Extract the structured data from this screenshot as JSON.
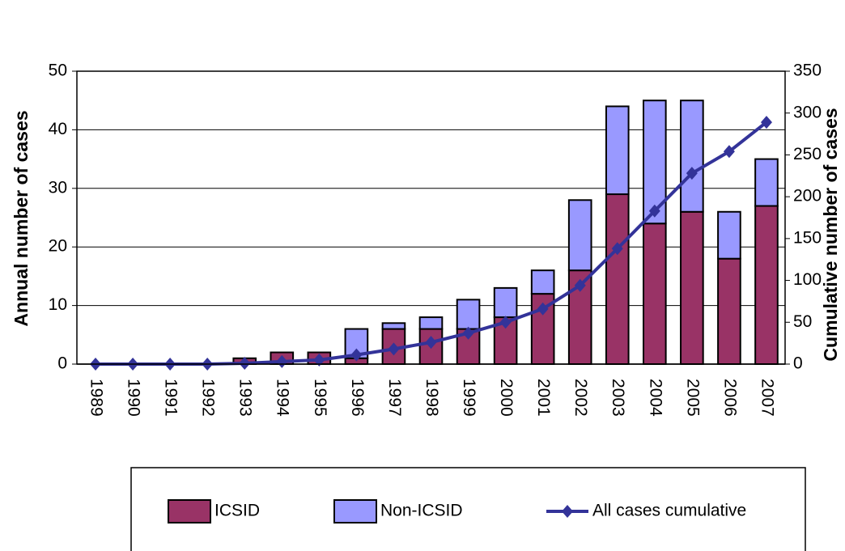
{
  "chart_data": {
    "type": "bar",
    "y_label": "Annual number of cases",
    "y2_label": "Cumulative number of cases",
    "categories": [
      "1989",
      "1990",
      "1991",
      "1992",
      "1993",
      "1994",
      "1995",
      "1996",
      "1997",
      "1998",
      "1999",
      "2000",
      "2001",
      "2002",
      "2003",
      "2004",
      "2005",
      "2006",
      "2007"
    ],
    "stacked": true,
    "series": [
      {
        "name": "ICSID",
        "color": "#993366",
        "values": [
          0,
          0,
          0,
          0,
          1,
          2,
          2,
          1,
          6,
          6,
          6,
          8,
          12,
          16,
          29,
          24,
          26,
          18,
          27
        ]
      },
      {
        "name": "Non-ICSID",
        "color": "#9999ff",
        "values": [
          0,
          0,
          0,
          0,
          0,
          0,
          0,
          5,
          1,
          2,
          5,
          5,
          4,
          12,
          15,
          21,
          19,
          8,
          8
        ]
      },
      {
        "name": "All cases cumulative",
        "color": "#333399",
        "type": "line",
        "axis": "y2",
        "values": [
          0,
          0,
          0,
          0,
          1,
          3,
          5,
          11,
          18,
          26,
          37,
          50,
          66,
          94,
          138,
          183,
          228,
          254,
          289
        ]
      }
    ],
    "ylim": [
      0,
      50
    ],
    "yticks": [
      0,
      10,
      20,
      30,
      40,
      50
    ],
    "y2lim": [
      0,
      350
    ],
    "y2ticks": [
      0,
      50,
      100,
      150,
      200,
      250,
      300,
      350
    ],
    "grid": true,
    "legend": "bottom"
  }
}
